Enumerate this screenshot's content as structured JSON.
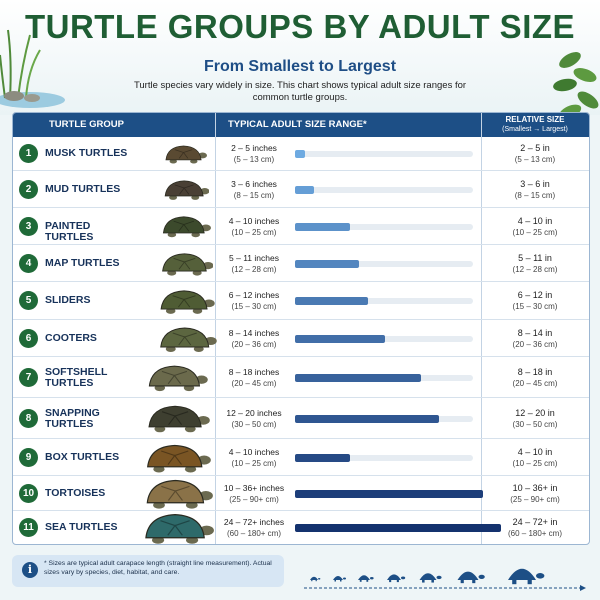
{
  "title": "TURTLE GROUPS BY ADULT SIZE",
  "subtitle": "From Smallest to Largest",
  "intro": "Turtle species vary widely in size. This chart shows typical adult size ranges for common turtle groups.",
  "headers": {
    "group": "TURTLE GROUP",
    "range": "TYPICAL ADULT SIZE RANGE*",
    "relative": "RELATIVE SIZE",
    "relative_sub": "(Smallest → Largest)"
  },
  "rows": [
    {
      "num": "1",
      "name": "MUSK TURTLES",
      "range_in": "2 – 5 inches",
      "range_cm": "(5 – 13 cm)",
      "rel_in": "2 – 5 in",
      "rel_cm": "(5 – 13 cm)"
    },
    {
      "num": "2",
      "name": "MUD TURTLES",
      "range_in": "3 – 6 inches",
      "range_cm": "(8 – 15 cm)",
      "rel_in": "3 – 6 in",
      "rel_cm": "(8 – 15 cm)"
    },
    {
      "num": "3",
      "name": "PAINTED TURTLES",
      "range_in": "4 – 10 inches",
      "range_cm": "(10 – 25 cm)",
      "rel_in": "4 – 10 in",
      "rel_cm": "(10 – 25 cm)"
    },
    {
      "num": "4",
      "name": "MAP TURTLES",
      "range_in": "5 – 11 inches",
      "range_cm": "(12 – 28 cm)",
      "rel_in": "5 – 11 in",
      "rel_cm": "(12 – 28 cm)"
    },
    {
      "num": "5",
      "name": "SLIDERS",
      "range_in": "6 – 12 inches",
      "range_cm": "(15 – 30 cm)",
      "rel_in": "6 – 12 in",
      "rel_cm": "(15 – 30 cm)"
    },
    {
      "num": "6",
      "name": "COOTERS",
      "range_in": "8 – 14 inches",
      "range_cm": "(20 – 36 cm)",
      "rel_in": "8 – 14 in",
      "rel_cm": "(20 – 36 cm)"
    },
    {
      "num": "7",
      "name": "SOFTSHELL TURTLES",
      "range_in": "8 – 18 inches",
      "range_cm": "(20 – 45 cm)",
      "rel_in": "8 – 18 in",
      "rel_cm": "(20 – 45 cm)"
    },
    {
      "num": "8",
      "name": "SNAPPING TURTLES",
      "range_in": "12 – 20 inches",
      "range_cm": "(30 – 50 cm)",
      "rel_in": "12 – 20 in",
      "rel_cm": "(30 – 50 cm)"
    },
    {
      "num": "9",
      "name": "BOX TURTLES",
      "range_in": "4 – 10 inches",
      "range_cm": "(10 – 25 cm)",
      "rel_in": "4 – 10 in",
      "rel_cm": "(10 – 25 cm)"
    },
    {
      "num": "10",
      "name": "TORTOISES",
      "range_in": "10 – 36+ inches",
      "range_cm": "(25 – 90+ cm)",
      "rel_in": "10 – 36+ in",
      "rel_cm": "(25 – 90+ cm)"
    },
    {
      "num": "11",
      "name": "SEA TURTLES",
      "range_in": "24 – 72+ inches",
      "range_cm": "(60 – 180+ cm)",
      "rel_in": "24 – 72+ in",
      "rel_cm": "(60 – 180+ cm)"
    }
  ],
  "footnote": "* Sizes are typical adult carapace length (straight line measurement). Actual sizes vary by species, diet, habitat, and care.",
  "colors": {
    "title": "#1f5e34",
    "subtitle": "#1f4e86",
    "header_bg": "#1d4f86",
    "number_badge": "#1f6a38",
    "bar_light": "#5a9bd5",
    "bar_dark": "#1b3f7a"
  },
  "chart_data": {
    "type": "bar",
    "categories": [
      "MUSK TURTLES",
      "MUD TURTLES",
      "PAINTED TURTLES",
      "MAP TURTLES",
      "SLIDERS",
      "COOTERS",
      "SOFTSHELL TURTLES",
      "SNAPPING TURTLES",
      "BOX TURTLES",
      "TORTOISES",
      "SEA TURTLES"
    ],
    "series": [
      {
        "values": [
          5,
          6,
          10,
          11,
          12,
          14,
          18,
          20,
          10,
          36,
          72
        ]
      }
    ],
    "min_in": [
      2,
      3,
      4,
      5,
      6,
      8,
      8,
      12,
      4,
      10,
      24
    ],
    "max_in": [
      5,
      6,
      10,
      11,
      12,
      14,
      18,
      20,
      10,
      36,
      72
    ],
    "xlim": [
      0,
      72
    ],
    "orientation": "horizontal",
    "grid": false
  }
}
